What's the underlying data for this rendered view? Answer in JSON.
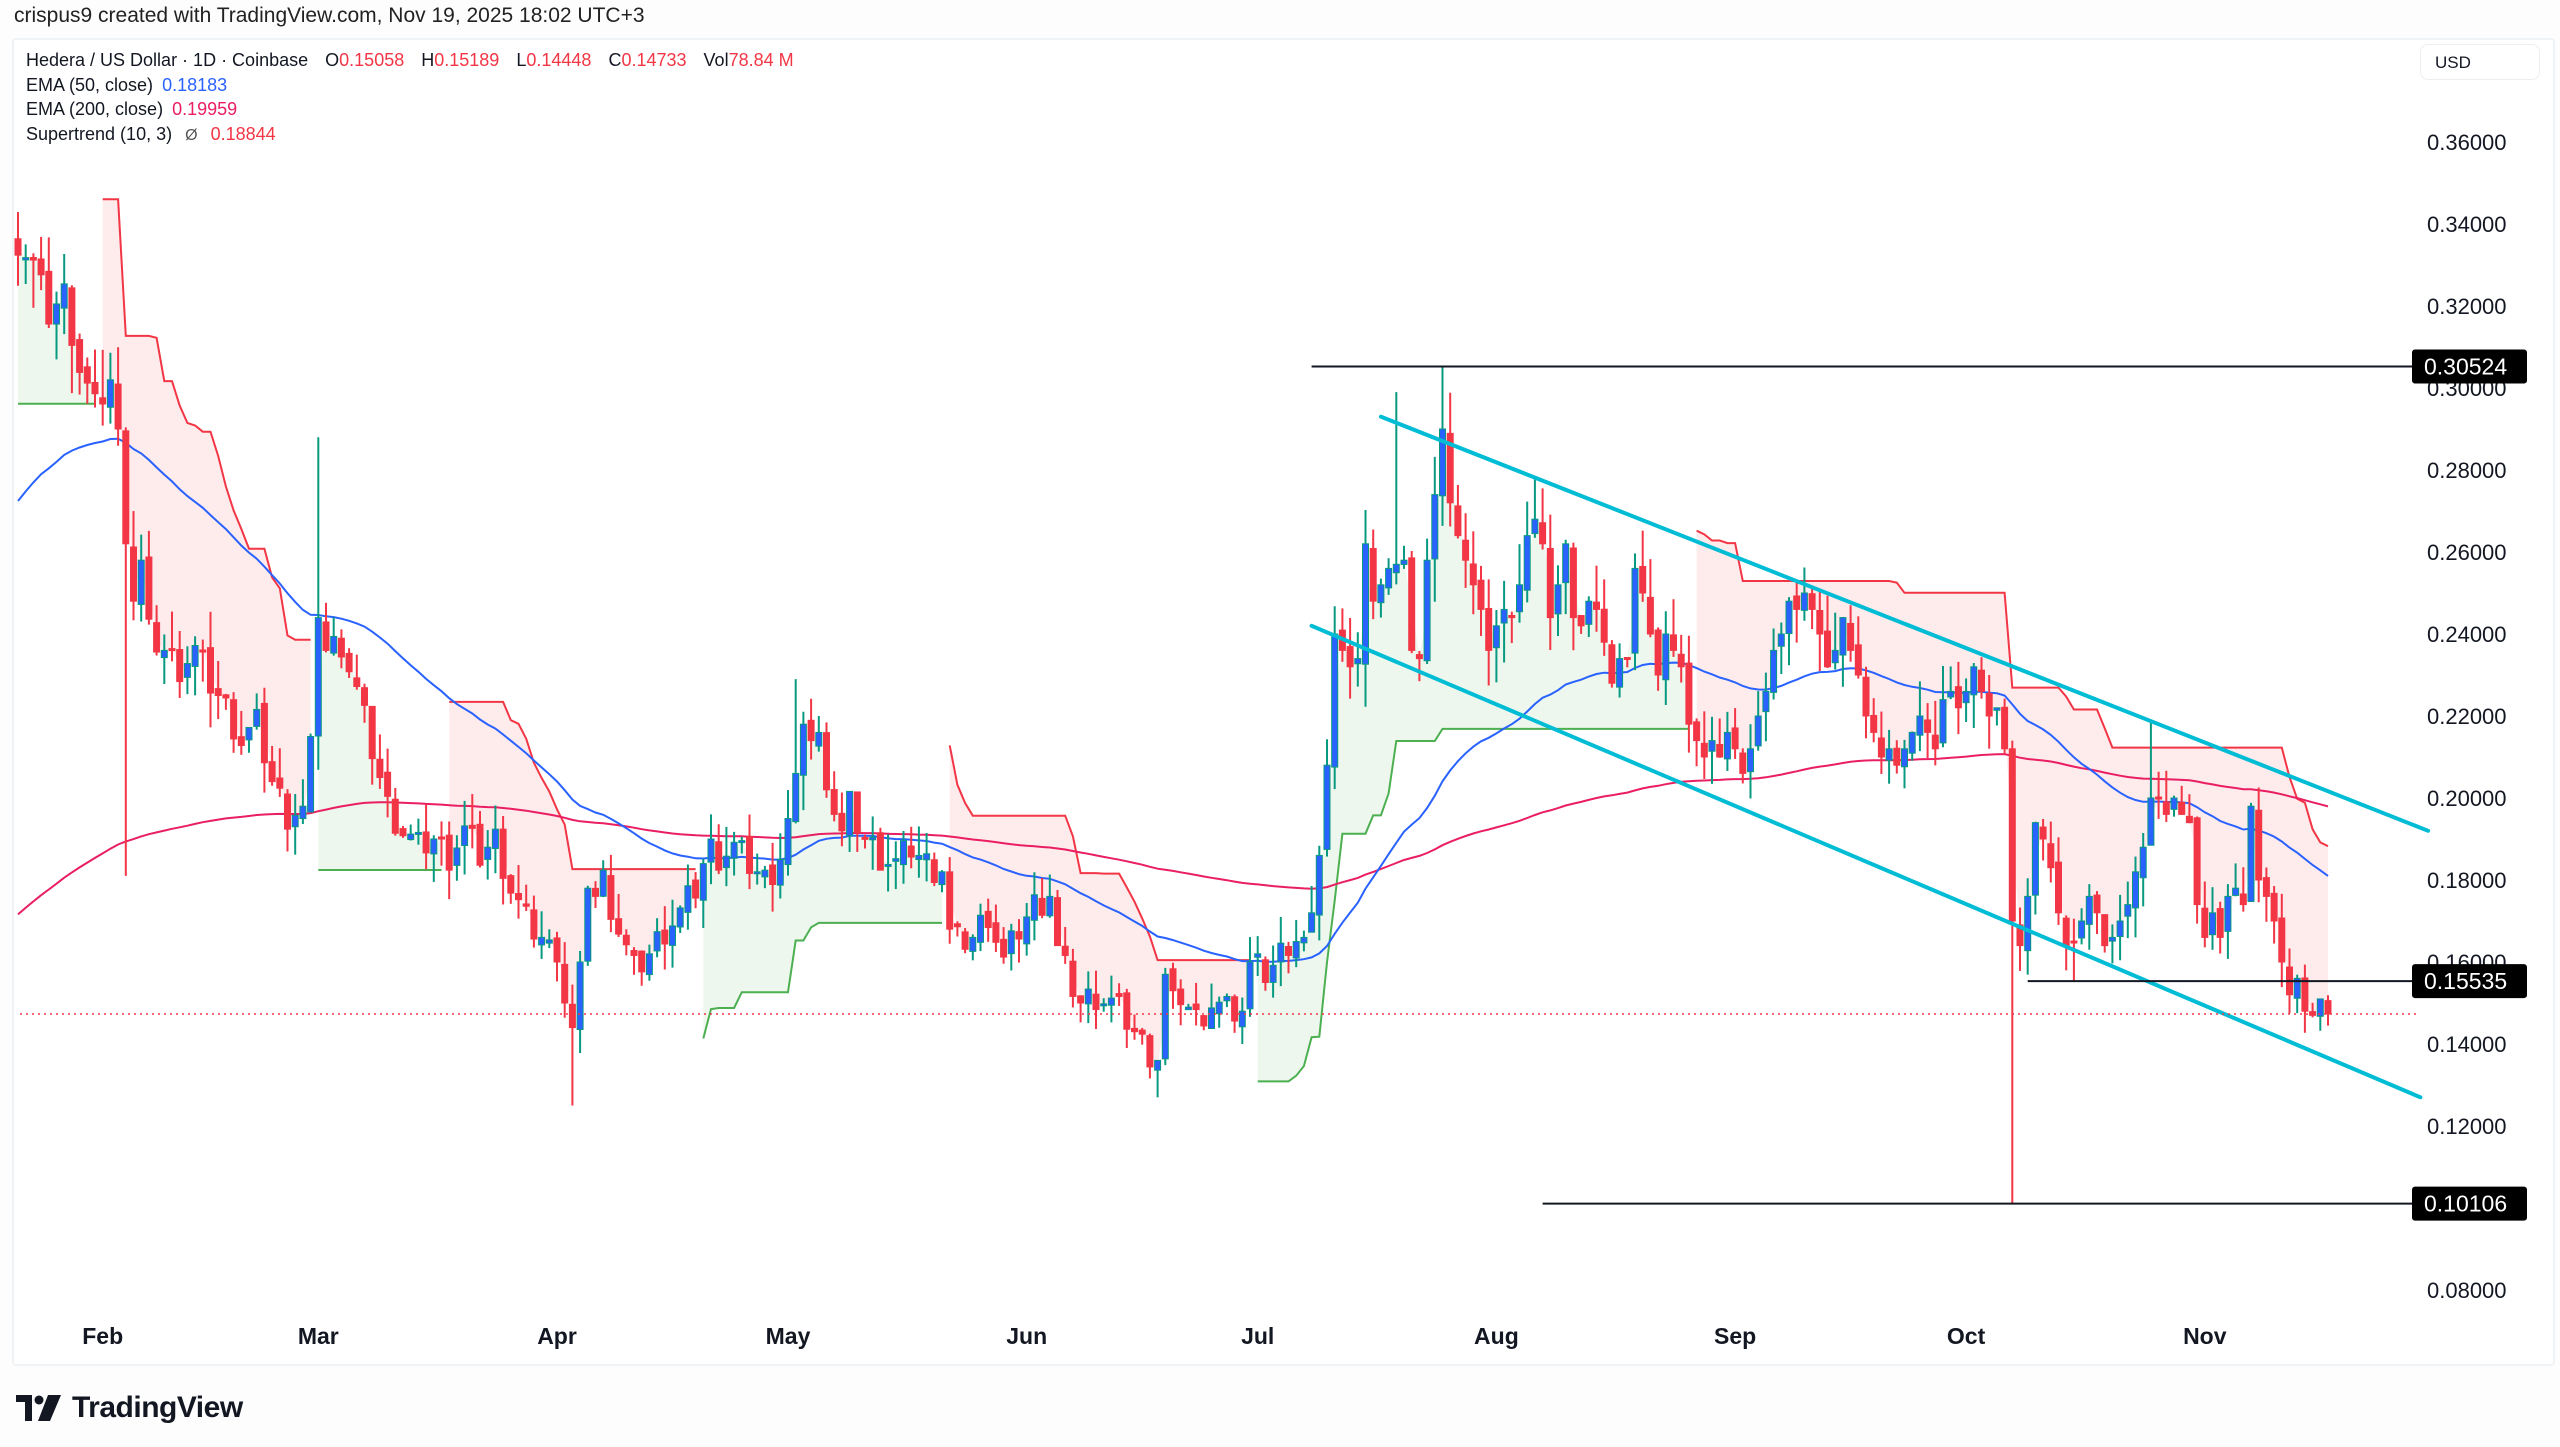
{
  "header": {
    "credit": "crispus9 created with TradingView.com, Nov 19, 2025 18:02 UTC+3"
  },
  "legend": {
    "symbol": "Hedera / US Dollar · 1D · Coinbase",
    "ohlc": {
      "o_label": "O",
      "o": "0.15058",
      "h_label": "H",
      "h": "0.15189",
      "l_label": "L",
      "l": "0.14448",
      "c_label": "C",
      "c": "0.14733",
      "vol_label": "Vol",
      "vol": "78.84 M"
    },
    "ema50": {
      "label": "EMA (50, close)",
      "value": "0.18183"
    },
    "ema200": {
      "label": "EMA (200, close)",
      "value": "0.19959"
    },
    "supertrend": {
      "label": "Supertrend (10, 3)",
      "icon": "Ø",
      "value": "0.18844"
    }
  },
  "axis": {
    "currency": "USD"
  },
  "brand": {
    "name": "TradingView"
  },
  "colors": {
    "up_body": "#2962ff",
    "up_wick": "#089981",
    "down": "#f23645",
    "ema50": "#2962ff",
    "ema200": "#e91e63",
    "st_up": "#4caf50",
    "st_down": "#f23645",
    "st_up_fill": "rgba(76,175,80,0.10)",
    "st_down_fill": "rgba(242,54,69,0.10)",
    "channel": "#00bcd4",
    "hline": "#131722"
  },
  "chart_data": {
    "type": "candlestick",
    "title": "Hedera / US Dollar · 1D · Coinbase",
    "xlabel": "",
    "ylabel": "USD",
    "ylim": [
      0.075,
      0.37
    ],
    "y_ticks": [
      "0.36000",
      "0.34000",
      "0.32000",
      "0.30000",
      "0.28000",
      "0.26000",
      "0.24000",
      "0.22000",
      "0.20000",
      "0.18000",
      "0.16000",
      "0.14000",
      "0.12000",
      "0.10000",
      "0.08000"
    ],
    "y_tick_values": [
      0.36,
      0.34,
      0.32,
      0.3,
      0.28,
      0.26,
      0.24,
      0.22,
      0.2,
      0.18,
      0.16,
      0.14,
      0.12,
      0.1,
      0.08
    ],
    "x_ticks": [
      "Feb",
      "Mar",
      "Apr",
      "May",
      "Jun",
      "Jul",
      "Aug",
      "Sep",
      "Oct",
      "Nov"
    ],
    "x_tick_day_index": [
      11,
      39,
      70,
      100,
      131,
      161,
      192,
      223,
      253,
      284
    ],
    "grid": false,
    "last_candle": {
      "open": 0.15058,
      "high": 0.15189,
      "low": 0.14448,
      "close": 0.14733,
      "volume": "78.84M"
    },
    "current_price": 0.14733,
    "indicators": {
      "ema50_last": 0.18183,
      "ema200_last": 0.19959,
      "supertrend_last": 0.18844
    },
    "horizontal_levels": [
      {
        "label": "0.30524",
        "price": 0.30524,
        "from_day": 168
      },
      {
        "label": "0.15535",
        "price": 0.15535,
        "from_day": 261
      },
      {
        "label": "0.10106",
        "price": 0.10106,
        "from_day": 198
      }
    ],
    "descending_channel": {
      "upper": {
        "from": {
          "day": 177,
          "price": 0.293
        },
        "to": {
          "day": 313,
          "price": 0.192
        }
      },
      "lower": {
        "from": {
          "day": 168,
          "price": 0.242
        },
        "to": {
          "day": 312,
          "price": 0.127
        }
      }
    },
    "close_keypoints": [
      [
        0,
        0.336
      ],
      [
        2,
        0.33
      ],
      [
        4,
        0.318
      ],
      [
        6,
        0.323
      ],
      [
        8,
        0.305
      ],
      [
        10,
        0.295
      ],
      [
        12,
        0.302
      ],
      [
        13,
        0.29
      ],
      [
        14,
        0.262
      ],
      [
        15,
        0.248
      ],
      [
        16,
        0.258
      ],
      [
        17,
        0.24
      ],
      [
        19,
        0.236
      ],
      [
        21,
        0.232
      ],
      [
        23,
        0.236
      ],
      [
        25,
        0.228
      ],
      [
        27,
        0.222
      ],
      [
        29,
        0.214
      ],
      [
        31,
        0.218
      ],
      [
        33,
        0.204
      ],
      [
        35,
        0.196
      ],
      [
        37,
        0.198
      ],
      [
        38,
        0.215
      ],
      [
        39,
        0.244
      ],
      [
        40,
        0.236
      ],
      [
        42,
        0.238
      ],
      [
        44,
        0.226
      ],
      [
        46,
        0.212
      ],
      [
        48,
        0.198
      ],
      [
        50,
        0.192
      ],
      [
        52,
        0.188
      ],
      [
        54,
        0.19
      ],
      [
        56,
        0.186
      ],
      [
        58,
        0.192
      ],
      [
        60,
        0.186
      ],
      [
        62,
        0.19
      ],
      [
        64,
        0.178
      ],
      [
        66,
        0.17
      ],
      [
        68,
        0.166
      ],
      [
        70,
        0.16
      ],
      [
        71,
        0.15
      ],
      [
        72,
        0.144
      ],
      [
        73,
        0.16
      ],
      [
        74,
        0.178
      ],
      [
        75,
        0.176
      ],
      [
        76,
        0.18
      ],
      [
        78,
        0.168
      ],
      [
        80,
        0.158
      ],
      [
        82,
        0.162
      ],
      [
        84,
        0.168
      ],
      [
        86,
        0.172
      ],
      [
        88,
        0.178
      ],
      [
        90,
        0.19
      ],
      [
        91,
        0.186
      ],
      [
        93,
        0.188
      ],
      [
        95,
        0.184
      ],
      [
        97,
        0.18
      ],
      [
        99,
        0.185
      ],
      [
        100,
        0.195
      ],
      [
        101,
        0.206
      ],
      [
        102,
        0.218
      ],
      [
        103,
        0.214
      ],
      [
        104,
        0.216
      ],
      [
        105,
        0.202
      ],
      [
        106,
        0.196
      ],
      [
        107,
        0.192
      ],
      [
        108,
        0.198
      ],
      [
        110,
        0.19
      ],
      [
        112,
        0.186
      ],
      [
        114,
        0.184
      ],
      [
        116,
        0.188
      ],
      [
        118,
        0.184
      ],
      [
        120,
        0.182
      ],
      [
        121,
        0.168
      ],
      [
        122,
        0.165
      ],
      [
        124,
        0.166
      ],
      [
        126,
        0.172
      ],
      [
        128,
        0.16
      ],
      [
        130,
        0.168
      ],
      [
        132,
        0.174
      ],
      [
        134,
        0.176
      ],
      [
        135,
        0.164
      ],
      [
        136,
        0.158
      ],
      [
        138,
        0.15
      ],
      [
        140,
        0.152
      ],
      [
        142,
        0.15
      ],
      [
        144,
        0.146
      ],
      [
        146,
        0.14
      ],
      [
        148,
        0.136
      ],
      [
        149,
        0.157
      ],
      [
        150,
        0.153
      ],
      [
        151,
        0.152
      ],
      [
        153,
        0.146
      ],
      [
        155,
        0.15
      ],
      [
        157,
        0.148
      ],
      [
        159,
        0.148
      ],
      [
        160,
        0.16
      ],
      [
        161,
        0.162
      ],
      [
        162,
        0.155
      ],
      [
        163,
        0.158
      ],
      [
        165,
        0.164
      ],
      [
        167,
        0.166
      ],
      [
        168,
        0.172
      ],
      [
        169,
        0.186
      ],
      [
        170,
        0.208
      ],
      [
        171,
        0.24
      ],
      [
        172,
        0.236
      ],
      [
        173,
        0.232
      ],
      [
        174,
        0.234
      ],
      [
        175,
        0.262
      ],
      [
        176,
        0.248
      ],
      [
        177,
        0.252
      ],
      [
        178,
        0.256
      ],
      [
        179,
        0.257
      ],
      [
        180,
        0.258
      ],
      [
        181,
        0.236
      ],
      [
        182,
        0.234
      ],
      [
        183,
        0.258
      ],
      [
        184,
        0.274
      ],
      [
        185,
        0.29
      ],
      [
        186,
        0.272
      ],
      [
        187,
        0.264
      ],
      [
        188,
        0.258
      ],
      [
        189,
        0.252
      ],
      [
        190,
        0.246
      ],
      [
        191,
        0.236
      ],
      [
        192,
        0.242
      ],
      [
        193,
        0.246
      ],
      [
        194,
        0.244
      ],
      [
        195,
        0.252
      ],
      [
        196,
        0.264
      ],
      [
        197,
        0.268
      ],
      [
        198,
        0.262
      ],
      [
        199,
        0.244
      ],
      [
        200,
        0.252
      ],
      [
        201,
        0.262
      ],
      [
        202,
        0.244
      ],
      [
        203,
        0.242
      ],
      [
        204,
        0.248
      ],
      [
        205,
        0.246
      ],
      [
        206,
        0.238
      ],
      [
        207,
        0.228
      ],
      [
        208,
        0.234
      ],
      [
        209,
        0.234
      ],
      [
        210,
        0.256
      ],
      [
        211,
        0.25
      ],
      [
        212,
        0.24
      ],
      [
        213,
        0.23
      ],
      [
        214,
        0.24
      ],
      [
        215,
        0.236
      ],
      [
        216,
        0.232
      ],
      [
        217,
        0.218
      ],
      [
        218,
        0.214
      ],
      [
        219,
        0.21
      ],
      [
        220,
        0.214
      ],
      [
        221,
        0.21
      ],
      [
        222,
        0.216
      ],
      [
        223,
        0.212
      ],
      [
        224,
        0.206
      ],
      [
        225,
        0.212
      ],
      [
        226,
        0.22
      ],
      [
        227,
        0.226
      ],
      [
        228,
        0.236
      ],
      [
        229,
        0.24
      ],
      [
        230,
        0.248
      ],
      [
        231,
        0.246
      ],
      [
        232,
        0.25
      ],
      [
        233,
        0.246
      ],
      [
        234,
        0.24
      ],
      [
        235,
        0.232
      ],
      [
        236,
        0.236
      ],
      [
        237,
        0.244
      ],
      [
        238,
        0.236
      ],
      [
        239,
        0.23
      ],
      [
        240,
        0.22
      ],
      [
        241,
        0.216
      ],
      [
        242,
        0.21
      ],
      [
        243,
        0.212
      ],
      [
        244,
        0.208
      ],
      [
        245,
        0.212
      ],
      [
        246,
        0.216
      ],
      [
        247,
        0.22
      ],
      [
        248,
        0.216
      ],
      [
        249,
        0.212
      ],
      [
        250,
        0.224
      ],
      [
        251,
        0.226
      ],
      [
        252,
        0.222
      ],
      [
        253,
        0.226
      ],
      [
        254,
        0.232
      ],
      [
        255,
        0.226
      ],
      [
        256,
        0.22
      ],
      [
        257,
        0.222
      ],
      [
        258,
        0.212
      ],
      [
        259,
        0.17
      ],
      [
        260,
        0.164
      ],
      [
        261,
        0.176
      ],
      [
        262,
        0.194
      ],
      [
        263,
        0.19
      ],
      [
        264,
        0.183
      ],
      [
        265,
        0.172
      ],
      [
        266,
        0.164
      ],
      [
        267,
        0.165
      ],
      [
        268,
        0.17
      ],
      [
        269,
        0.176
      ],
      [
        270,
        0.172
      ],
      [
        271,
        0.164
      ],
      [
        272,
        0.166
      ],
      [
        273,
        0.17
      ],
      [
        274,
        0.174
      ],
      [
        275,
        0.182
      ],
      [
        276,
        0.188
      ],
      [
        277,
        0.2
      ],
      [
        278,
        0.2
      ],
      [
        279,
        0.196
      ],
      [
        280,
        0.2
      ],
      [
        281,
        0.196
      ],
      [
        282,
        0.194
      ],
      [
        283,
        0.174
      ],
      [
        284,
        0.166
      ],
      [
        285,
        0.172
      ],
      [
        286,
        0.166
      ],
      [
        287,
        0.176
      ],
      [
        288,
        0.178
      ],
      [
        289,
        0.174
      ],
      [
        290,
        0.198
      ],
      [
        291,
        0.18
      ],
      [
        292,
        0.176
      ],
      [
        293,
        0.17
      ],
      [
        294,
        0.16
      ],
      [
        295,
        0.152
      ],
      [
        296,
        0.156
      ],
      [
        297,
        0.148
      ],
      [
        298,
        0.147
      ],
      [
        299,
        0.151
      ],
      [
        300,
        0.1473
      ]
    ]
  }
}
